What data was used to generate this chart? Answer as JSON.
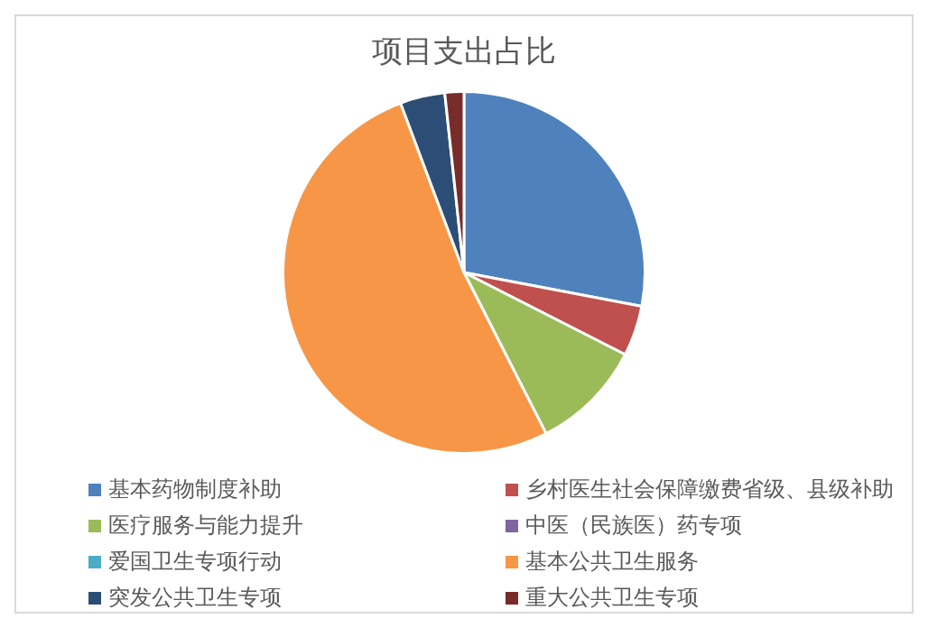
{
  "chart_data": {
    "type": "pie",
    "title": "项目支出占比",
    "categories": [
      "基本药物制度补助",
      "乡村医生社会保障缴费省级、县级补助",
      "医疗服务与能力提升",
      "中医（民族医）药专项",
      "爱国卫生专项行动",
      "基本公共卫生服务",
      "突发公共卫生专项",
      "重大公共卫生专项"
    ],
    "values": [
      28,
      4.5,
      10,
      0,
      0,
      51.8,
      4,
      1.7
    ],
    "colors": [
      "#4f81bd",
      "#c0504d",
      "#9bbb59",
      "#8064a2",
      "#4bacc6",
      "#f79646",
      "#2c4d75",
      "#772c2a"
    ],
    "legend": "bottom"
  }
}
